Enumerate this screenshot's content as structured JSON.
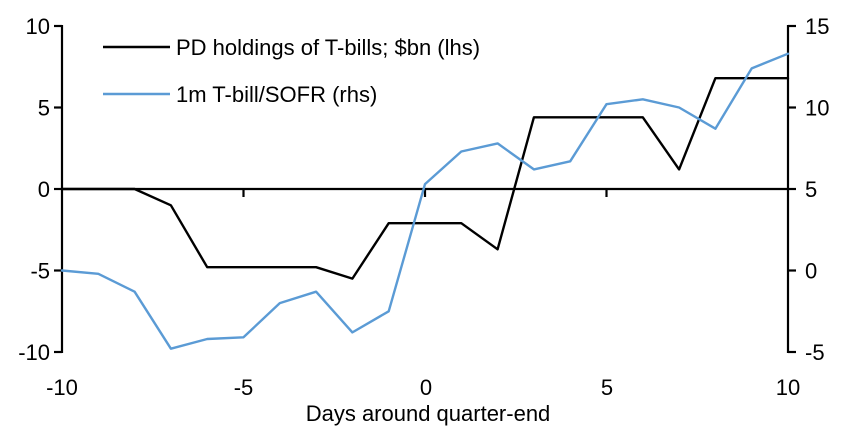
{
  "chart_data": {
    "type": "line",
    "title": "",
    "xlabel": "Days around quarter-end",
    "grid": false,
    "legend_position": "top-left",
    "x": [
      -10,
      -9,
      -8,
      -7,
      -6,
      -5,
      -4,
      -3,
      -2,
      -1,
      0,
      1,
      2,
      3,
      4,
      5,
      6,
      7,
      8,
      9,
      10
    ],
    "series": [
      {
        "name": "PD holdings of T-bills; $bn (lhs)",
        "axis": "lhs",
        "color": "#000000",
        "values": [
          0,
          0,
          0,
          -1,
          -4.8,
          -4.8,
          -4.8,
          -4.8,
          -5.5,
          -2.1,
          -2.1,
          -2.1,
          -3.7,
          4.4,
          4.4,
          4.4,
          4.4,
          1.2,
          6.8,
          6.8,
          6.8
        ]
      },
      {
        "name": "1m T-bill/SOFR (rhs)",
        "axis": "rhs",
        "color": "#5B9BD5",
        "values": [
          0,
          -0.2,
          -1.3,
          -4.8,
          -4.2,
          -4.1,
          -2,
          -1.3,
          -3.8,
          -2.5,
          5.3,
          7.3,
          7.8,
          6.2,
          6.7,
          10.2,
          10.5,
          10,
          8.7,
          12.4,
          13.3
        ]
      }
    ],
    "lhs_axis": {
      "range": [
        -10,
        10
      ],
      "ticks": [
        10,
        5,
        0,
        -5,
        -10
      ]
    },
    "rhs_axis": {
      "range": [
        -5,
        15
      ],
      "ticks": [
        15,
        10,
        5,
        0,
        -5
      ]
    },
    "x_axis": {
      "range": [
        -10,
        10
      ],
      "ticks": [
        -10,
        -5,
        0,
        5,
        10
      ]
    }
  }
}
